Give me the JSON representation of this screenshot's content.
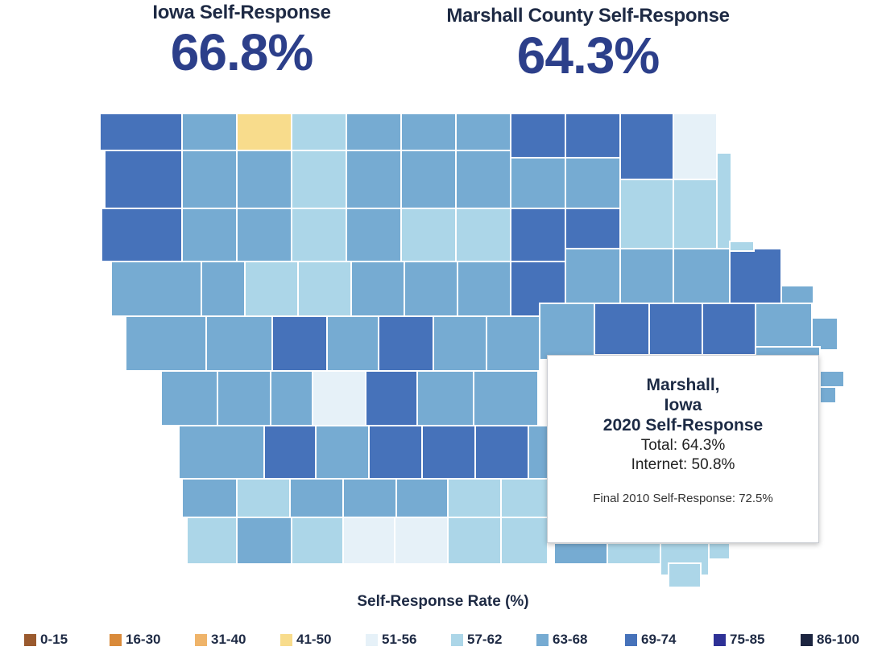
{
  "header": {
    "state_label": "Iowa Self-Response",
    "state_value": "66.8%",
    "county_label": "Marshall County Self-Response",
    "county_value": "64.3%"
  },
  "tooltip": {
    "name_line1": "Marshall,",
    "name_line2": "Iowa",
    "title": "2020 Self-Response",
    "total": "Total: 64.3%",
    "internet": "Internet: 50.8%",
    "final_2010": "Final 2010 Self-Response: 72.5%"
  },
  "legend": {
    "title": "Self-Response Rate (%)",
    "items": [
      {
        "label": "0-15",
        "color": "#9a5a2e"
      },
      {
        "label": "16-30",
        "color": "#d98a3a"
      },
      {
        "label": "31-40",
        "color": "#efb46a"
      },
      {
        "label": "41-50",
        "color": "#f8dc8c"
      },
      {
        "label": "51-56",
        "color": "#e6f1f8"
      },
      {
        "label": "57-62",
        "color": "#acd6e8"
      },
      {
        "label": "63-68",
        "color": "#76abd2"
      },
      {
        "label": "69-74",
        "color": "#4672ba"
      },
      {
        "label": "75-85",
        "color": "#2e3196"
      },
      {
        "label": "86-100",
        "color": "#1c2540"
      }
    ]
  },
  "colors": {
    "c41_50": "#f8dc8c",
    "c51_56": "#e6f1f8",
    "c57_62": "#acd6e8",
    "c63_68": "#76abd2",
    "c69_74": "#4672ba",
    "title_blue": "#2c3f8a"
  }
}
